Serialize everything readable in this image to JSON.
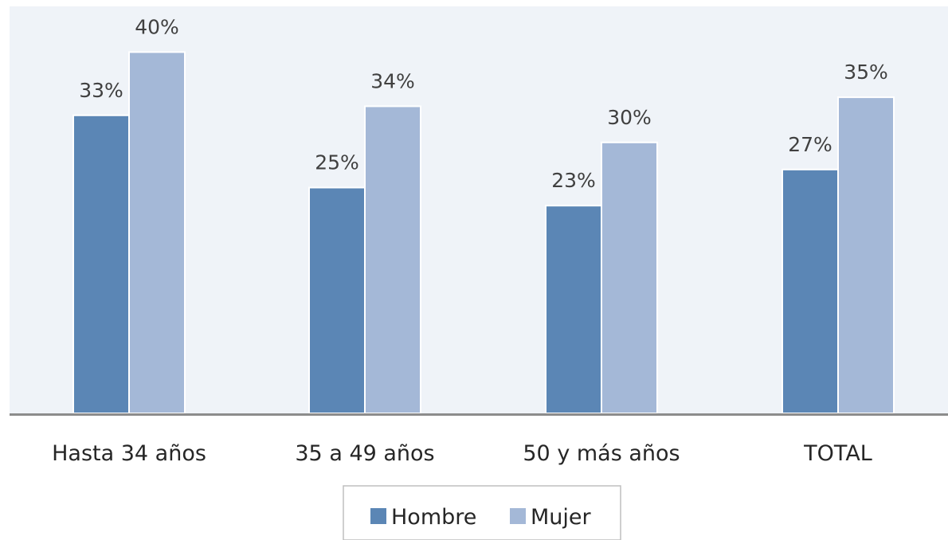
{
  "chart_data": {
    "type": "bar",
    "categories": [
      "Hasta 34 años",
      "35 a 49 años",
      "50 y más años",
      "TOTAL"
    ],
    "series": [
      {
        "name": "Hombre",
        "values": [
          33,
          25,
          23,
          27
        ],
        "labels": [
          "33%",
          "25%",
          "23%",
          "27%"
        ],
        "color": "#5b86b5"
      },
      {
        "name": "Mujer",
        "values": [
          40,
          34,
          30,
          35
        ],
        "labels": [
          "40%",
          "34%",
          "30%",
          "35%"
        ],
        "color": "#a4b8d7"
      }
    ],
    "ylim": [
      0,
      45
    ],
    "grid": false,
    "legend_position": "bottom-center",
    "plot_background": "#eff3f8",
    "axis_color": "#8c8c8c"
  }
}
